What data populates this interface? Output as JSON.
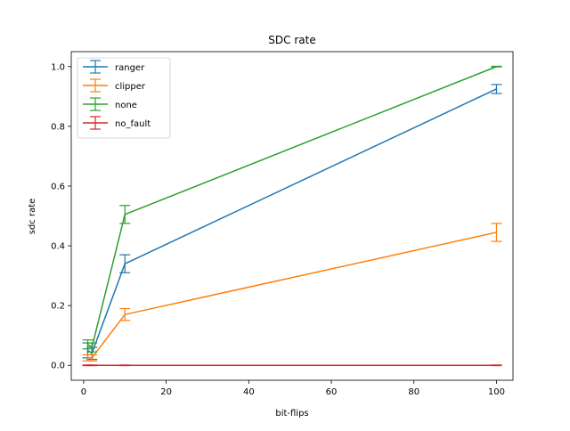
{
  "chart_data": {
    "type": "line",
    "title": "SDC rate",
    "xlabel": "bit-flips",
    "ylabel": "sdc rate",
    "xlim": [
      -3,
      104
    ],
    "ylim": [
      -0.05,
      1.05
    ],
    "xticks": [
      0,
      20,
      40,
      60,
      80,
      100
    ],
    "xtick_labels": [
      "0",
      "20",
      "40",
      "60",
      "80",
      "100"
    ],
    "yticks": [
      0.0,
      0.2,
      0.4,
      0.6,
      0.8,
      1.0
    ],
    "ytick_labels": [
      "0.0",
      "0.2",
      "0.4",
      "0.6",
      "0.8",
      "1.0"
    ],
    "grid": false,
    "legend_position": "top-left",
    "error_bars": true,
    "x": [
      1,
      2,
      10,
      100
    ],
    "series": [
      {
        "name": "ranger",
        "color": "#1f77b4",
        "values": [
          0.05,
          0.04,
          0.34,
          0.925
        ],
        "errors": [
          0.025,
          0.02,
          0.03,
          0.015
        ]
      },
      {
        "name": "clipper",
        "color": "#ff7f0e",
        "values": [
          0.025,
          0.025,
          0.17,
          0.445
        ],
        "errors": [
          0.01,
          0.01,
          0.02,
          0.03
        ]
      },
      {
        "name": "none",
        "color": "#2ca02c",
        "values": [
          0.07,
          0.06,
          0.505,
          1.0
        ],
        "errors": [
          0.015,
          0.015,
          0.03,
          0.001
        ]
      },
      {
        "name": "no_fault",
        "color": "#d62728",
        "values": [
          0.0,
          0.0,
          0.0,
          0.0
        ],
        "errors": [
          0.001,
          0.001,
          0.001,
          0.001
        ]
      }
    ]
  }
}
